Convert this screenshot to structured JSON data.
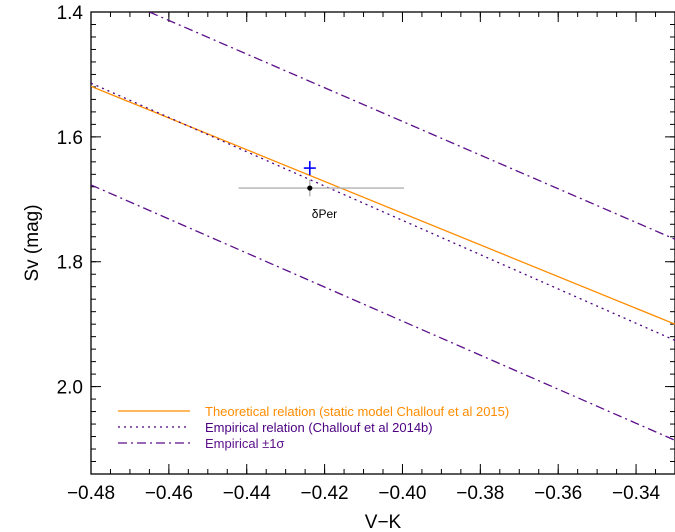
{
  "chart_data": {
    "type": "line",
    "xlabel": "V−K",
    "ylabel": "Sv (mag)",
    "xlim": [
      -0.48,
      -0.33
    ],
    "ylim": [
      2.14,
      1.4
    ],
    "y_inverted": true,
    "xticks": [
      -0.48,
      -0.46,
      -0.44,
      -0.42,
      -0.4,
      -0.38,
      -0.36,
      -0.34
    ],
    "xtick_labels": [
      "−0.48",
      "−0.46",
      "−0.44",
      "−0.42",
      "−0.40",
      "−0.38",
      "−0.36",
      "−0.34"
    ],
    "yticks": [
      1.4,
      1.6,
      1.8,
      2.0
    ],
    "ytick_labels": [
      "1.4",
      "1.6",
      "1.8",
      "2.0"
    ],
    "grid": false,
    "legend_position": "bottom-left",
    "series": [
      {
        "name": "Theoretical relation (static model Challouf et al 2015)",
        "color": "#ff8c00",
        "style": "solid",
        "x": [
          -0.48,
          -0.33
        ],
        "y": [
          1.519,
          1.9
        ]
      },
      {
        "name": "Empirical relation (Challouf et al 2014b)",
        "color": "#4b0082",
        "style": "dotted",
        "x": [
          -0.48,
          -0.33
        ],
        "y": [
          1.514,
          1.926
        ]
      },
      {
        "name": "Empirical ±1σ",
        "color": "#5b0f8a",
        "style": "dashdot",
        "x": [
          -0.465,
          -0.33
        ],
        "y": [
          1.4,
          1.764
        ]
      },
      {
        "name": "",
        "color": "#5b0f8a",
        "style": "dashdot",
        "x": [
          -0.48,
          -0.33
        ],
        "y": [
          1.677,
          2.086
        ]
      }
    ],
    "points": [
      {
        "label": "δPer",
        "x": -0.4238,
        "y": 1.682,
        "xerr": 0.0118,
        "yerr": 0.024,
        "color": "#000000",
        "errorbar_color": "#b0b0b0"
      },
      {
        "label": "",
        "marker": "plus",
        "x": -0.4238,
        "y": 1.65,
        "color": "#0000ff"
      }
    ]
  }
}
